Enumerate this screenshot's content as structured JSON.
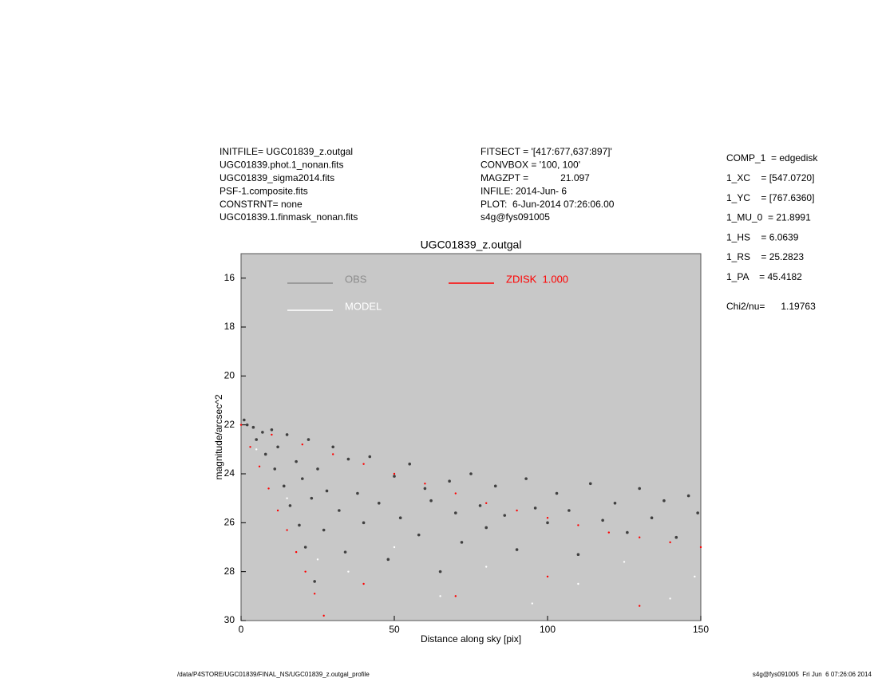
{
  "header": {
    "left": [
      "INITFILE= UGC01839_z.outgal",
      "UGC01839.phot.1_nonan.fits",
      "UGC01839_sigma2014.fits",
      "PSF-1.composite.fits",
      "CONSTRNT= none",
      "UGC01839.1.finmask_nonan.fits"
    ],
    "middle": [
      "FITSECT = '[417:677,637:897]'",
      "CONVBOX = '100, 100'",
      "MAGZPT =            21.097",
      "INFILE: 2014-Jun- 6",
      "PLOT:  6-Jun-2014 07:26:06.00",
      "s4g@fys091005"
    ],
    "params": [
      "COMP_1  = edgedisk",
      "1_XC    = [547.0720]",
      "1_YC    = [767.6360]",
      "1_MU_0  = 21.8991",
      "1_HS    = 6.0639",
      "1_RS    = 25.2823",
      "1_PA    = 45.4182"
    ],
    "chi2": "Chi2/nu=      1.19763"
  },
  "footer": {
    "left": "/data/P4STORE/UGC01839/FINAL_NS/UGC01839_z.outgal_profile",
    "right": "s4g@fys091005  Fri Jun  6 07:26:06 2014"
  },
  "chart_data": {
    "type": "scatter",
    "title": "UGC01839_z.outgal",
    "x_label": "Distance along sky [pix]",
    "y_label": "magnitude/arcsec^2",
    "xlim": [
      0,
      150
    ],
    "ylim": [
      15,
      30
    ],
    "y_inverted": true,
    "xticks": [
      0,
      50,
      100,
      150
    ],
    "yticks": [
      16,
      18,
      20,
      22,
      24,
      26,
      28,
      30
    ],
    "background": "#c8c8c8",
    "series": [
      {
        "name": "OBS",
        "color": "#404040",
        "legend_color": "#8c8c8c",
        "x": [
          1,
          2,
          4,
          5,
          7,
          8,
          10,
          11,
          12,
          14,
          15,
          16,
          18,
          19,
          20,
          21,
          22,
          23,
          24,
          25,
          27,
          28,
          30,
          32,
          34,
          35,
          38,
          40,
          42,
          45,
          48,
          50,
          52,
          55,
          58,
          60,
          62,
          65,
          68,
          70,
          72,
          75,
          78,
          80,
          83,
          86,
          90,
          93,
          96,
          100,
          103,
          107,
          110,
          114,
          118,
          122,
          126,
          130,
          134,
          138,
          142,
          146,
          149
        ],
        "values": [
          21.8,
          22.0,
          22.1,
          22.6,
          22.3,
          23.2,
          22.2,
          23.8,
          22.9,
          24.5,
          22.4,
          25.3,
          23.5,
          26.1,
          24.2,
          27.0,
          22.6,
          25.0,
          28.4,
          23.8,
          26.3,
          24.7,
          22.9,
          25.5,
          27.2,
          23.4,
          24.8,
          26.0,
          23.3,
          25.2,
          27.5,
          24.1,
          25.8,
          23.6,
          26.5,
          24.6,
          25.1,
          28.0,
          24.3,
          25.6,
          26.8,
          24.0,
          25.3,
          26.2,
          24.5,
          25.7,
          27.1,
          24.2,
          25.4,
          26.0,
          24.8,
          25.5,
          27.3,
          24.4,
          25.9,
          25.2,
          26.4,
          24.6,
          25.8,
          25.1,
          26.6,
          24.9,
          25.6
        ]
      },
      {
        "name": "MODEL",
        "color": "#ffffff",
        "legend_color": "#ffffff",
        "x": [
          5,
          15,
          25,
          35,
          50,
          65,
          80,
          95,
          110,
          125,
          140,
          148
        ],
        "values": [
          23.0,
          25.0,
          27.5,
          28.0,
          27.0,
          29.0,
          27.8,
          29.3,
          28.5,
          27.6,
          29.1,
          28.2
        ]
      },
      {
        "name": "ZDISK  1.000",
        "color": "#ff0000",
        "legend_color": "#ff0000",
        "x": [
          0,
          3,
          6,
          9,
          12,
          15,
          18,
          21,
          24,
          27,
          10,
          20,
          30,
          40,
          50,
          60,
          70,
          80,
          90,
          100,
          110,
          120,
          130,
          140,
          150,
          40,
          70,
          100,
          130
        ],
        "values": [
          22.0,
          22.9,
          23.7,
          24.6,
          25.5,
          26.3,
          27.2,
          28.0,
          28.9,
          29.8,
          22.4,
          22.8,
          23.2,
          23.6,
          24.0,
          24.4,
          24.8,
          25.2,
          25.5,
          25.8,
          26.1,
          26.4,
          26.6,
          26.8,
          27.0,
          28.5,
          29.0,
          28.2,
          29.4
        ]
      }
    ]
  }
}
